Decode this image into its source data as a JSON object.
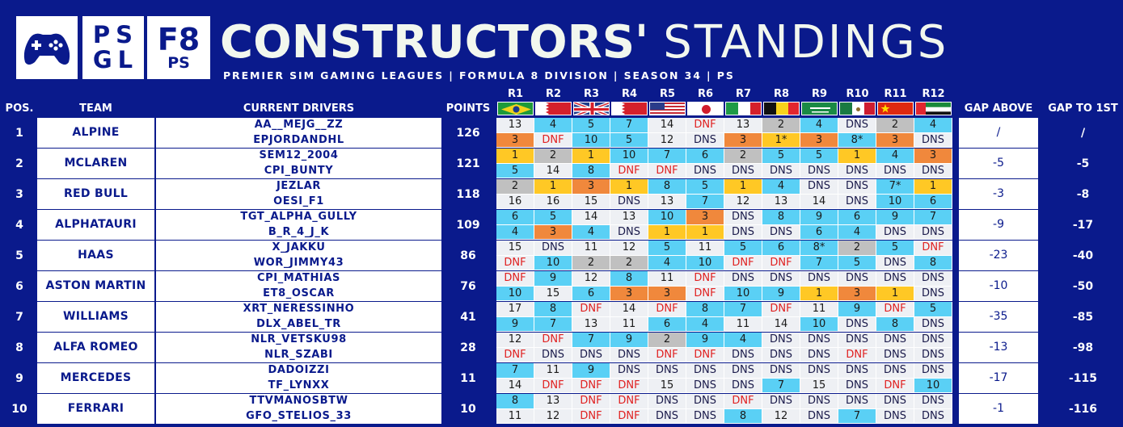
{
  "header": {
    "logo_psgl_line1": "PS",
    "logo_psgl_line2": "GL",
    "logo_f8_big": "F8",
    "logo_f8_small": "PS",
    "title_bold": "CONSTRUCTORS'",
    "title_light": "STANDINGS",
    "subtitle": "PREMIER SIM GAMING LEAGUES | FORMULA 8 DIVISION | SEASON 34 | PS"
  },
  "columns": {
    "pos": "POS.",
    "team": "TEAM",
    "drivers": "CURRENT DRIVERS",
    "points": "POINTS",
    "gap_above": "GAP ABOVE",
    "gap_first": "GAP TO 1ST",
    "rounds": [
      "R1",
      "R2",
      "R3",
      "R4",
      "R5",
      "R6",
      "R7",
      "R8",
      "R9",
      "R10",
      "R11",
      "R12"
    ]
  },
  "flags": [
    "brazil-flag",
    "bahrain-flag",
    "uk-flag",
    "bahrain-flag",
    "usa-flag",
    "japan-flag",
    "italy-flag",
    "belgium-flag",
    "saudi-arabia-flag",
    "mexico-flag",
    "china-flag",
    "uae-flag"
  ],
  "colors": {
    "background": "#0a1a8c",
    "win": "#ffc825",
    "second": "#c0c0c0",
    "third": "#f0883c",
    "points": "#5ad0f5",
    "no_points": "#eef0f4",
    "dnf_text": "#e02020"
  },
  "rows": [
    {
      "pos": "1",
      "team": "ALPINE",
      "drivers": [
        "AA__MEJG__ZZ",
        "EPJORDANDHL"
      ],
      "points": "126",
      "gap_above": "/",
      "gap_first": "/",
      "results": [
        [
          "13",
          "4",
          "5",
          "7",
          "14",
          "DNF",
          "13",
          "2",
          "4",
          "DNS",
          "2",
          "4"
        ],
        [
          "3",
          "DNF",
          "10",
          "5",
          "12",
          "DNS",
          "3",
          "1*",
          "3",
          "8*",
          "3",
          "DNS"
        ]
      ]
    },
    {
      "pos": "2",
      "team": "MCLAREN",
      "drivers": [
        "SEM12_2004",
        "CPI_BUNTY"
      ],
      "points": "121",
      "gap_above": "-5",
      "gap_first": "-5",
      "results": [
        [
          "1",
          "2",
          "1",
          "10",
          "7",
          "6",
          "2",
          "5",
          "5",
          "1",
          "4",
          "3"
        ],
        [
          "5",
          "14",
          "8",
          "DNF",
          "DNF",
          "DNS",
          "DNS",
          "DNS",
          "DNS",
          "DNS",
          "DNS",
          "DNS"
        ]
      ]
    },
    {
      "pos": "3",
      "team": "RED BULL",
      "drivers": [
        "JEZLAR",
        "OESI_F1"
      ],
      "points": "118",
      "gap_above": "-3",
      "gap_first": "-8",
      "results": [
        [
          "2",
          "1",
          "3",
          "1",
          "8",
          "5",
          "1",
          "4",
          "DNS",
          "DNS",
          "7*",
          "1"
        ],
        [
          "16",
          "16",
          "15",
          "DNS",
          "13",
          "7",
          "12",
          "13",
          "14",
          "DNS",
          "10",
          "6"
        ]
      ]
    },
    {
      "pos": "4",
      "team": "ALPHATAURI",
      "drivers": [
        "TGT_ALPHA_GULLY",
        "B_R_4_J_K"
      ],
      "points": "109",
      "gap_above": "-9",
      "gap_first": "-17",
      "results": [
        [
          "6",
          "5",
          "14",
          "13",
          "10",
          "3",
          "DNS",
          "8",
          "9",
          "6",
          "9",
          "7"
        ],
        [
          "4",
          "3",
          "4",
          "DNS",
          "1",
          "1",
          "DNS",
          "DNS",
          "6",
          "4",
          "DNS",
          "DNS"
        ]
      ]
    },
    {
      "pos": "5",
      "team": "HAAS",
      "drivers": [
        "X_JAKKU",
        "WOR_JIMMY43"
      ],
      "points": "86",
      "gap_above": "-23",
      "gap_first": "-40",
      "results": [
        [
          "15",
          "DNS",
          "11",
          "12",
          "5",
          "11",
          "5",
          "6",
          "8*",
          "2",
          "5",
          "DNF"
        ],
        [
          "DNF",
          "10",
          "2",
          "2",
          "4",
          "10",
          "DNF",
          "DNF",
          "7",
          "5",
          "DNS",
          "8"
        ]
      ]
    },
    {
      "pos": "6",
      "team": "ASTON MARTIN",
      "drivers": [
        "CPI_MATHIAS",
        "ET8_OSCAR"
      ],
      "points": "76",
      "gap_above": "-10",
      "gap_first": "-50",
      "results": [
        [
          "DNF",
          "9",
          "12",
          "8",
          "11",
          "DNF",
          "DNS",
          "DNS",
          "DNS",
          "DNS",
          "DNS",
          "DNS"
        ],
        [
          "10",
          "15",
          "6",
          "3",
          "3",
          "DNF",
          "10",
          "9",
          "1",
          "3",
          "1",
          "DNS"
        ]
      ]
    },
    {
      "pos": "7",
      "team": "WILLIAMS",
      "drivers": [
        "XRT_NERESSINHO",
        "DLX_ABEL_TR"
      ],
      "points": "41",
      "gap_above": "-35",
      "gap_first": "-85",
      "results": [
        [
          "17",
          "8",
          "DNF",
          "14",
          "DNF",
          "8",
          "7",
          "DNF",
          "11",
          "9",
          "DNF",
          "5"
        ],
        [
          "9",
          "7",
          "13",
          "11",
          "6",
          "4",
          "11",
          "14",
          "10",
          "DNS",
          "8",
          "DNS"
        ]
      ]
    },
    {
      "pos": "8",
      "team": "ALFA ROMEO",
      "drivers": [
        "NLR_VETSKU98",
        "NLR_SZABI"
      ],
      "points": "28",
      "gap_above": "-13",
      "gap_first": "-98",
      "results": [
        [
          "12",
          "DNF",
          "7",
          "9",
          "2",
          "9",
          "4",
          "DNS",
          "DNS",
          "DNS",
          "DNS",
          "DNS"
        ],
        [
          "DNF",
          "DNS",
          "DNS",
          "DNS",
          "DNF",
          "DNF",
          "DNS",
          "DNS",
          "DNS",
          "DNF",
          "DNS",
          "DNS"
        ]
      ]
    },
    {
      "pos": "9",
      "team": "MERCEDES",
      "drivers": [
        "DADOIZZI",
        "TF_LYNXX"
      ],
      "points": "11",
      "gap_above": "-17",
      "gap_first": "-115",
      "results": [
        [
          "7",
          "11",
          "9",
          "DNS",
          "DNS",
          "DNS",
          "DNS",
          "DNS",
          "DNS",
          "DNS",
          "DNS",
          "DNS"
        ],
        [
          "14",
          "DNF",
          "DNF",
          "DNF",
          "15",
          "DNS",
          "DNS",
          "7",
          "15",
          "DNS",
          "DNF",
          "10"
        ]
      ]
    },
    {
      "pos": "10",
      "team": "FERRARI",
      "drivers": [
        "TTVMANOSBTW",
        "GFO_STELIOS_33"
      ],
      "points": "10",
      "gap_above": "-1",
      "gap_first": "-116",
      "results": [
        [
          "8",
          "13",
          "DNF",
          "DNF",
          "DNS",
          "DNS",
          "DNF",
          "DNS",
          "DNS",
          "DNS",
          "DNS",
          "DNS"
        ],
        [
          "11",
          "12",
          "DNF",
          "DNF",
          "DNS",
          "DNS",
          "8",
          "12",
          "DNS",
          "7",
          "DNS",
          "DNS"
        ]
      ]
    }
  ]
}
